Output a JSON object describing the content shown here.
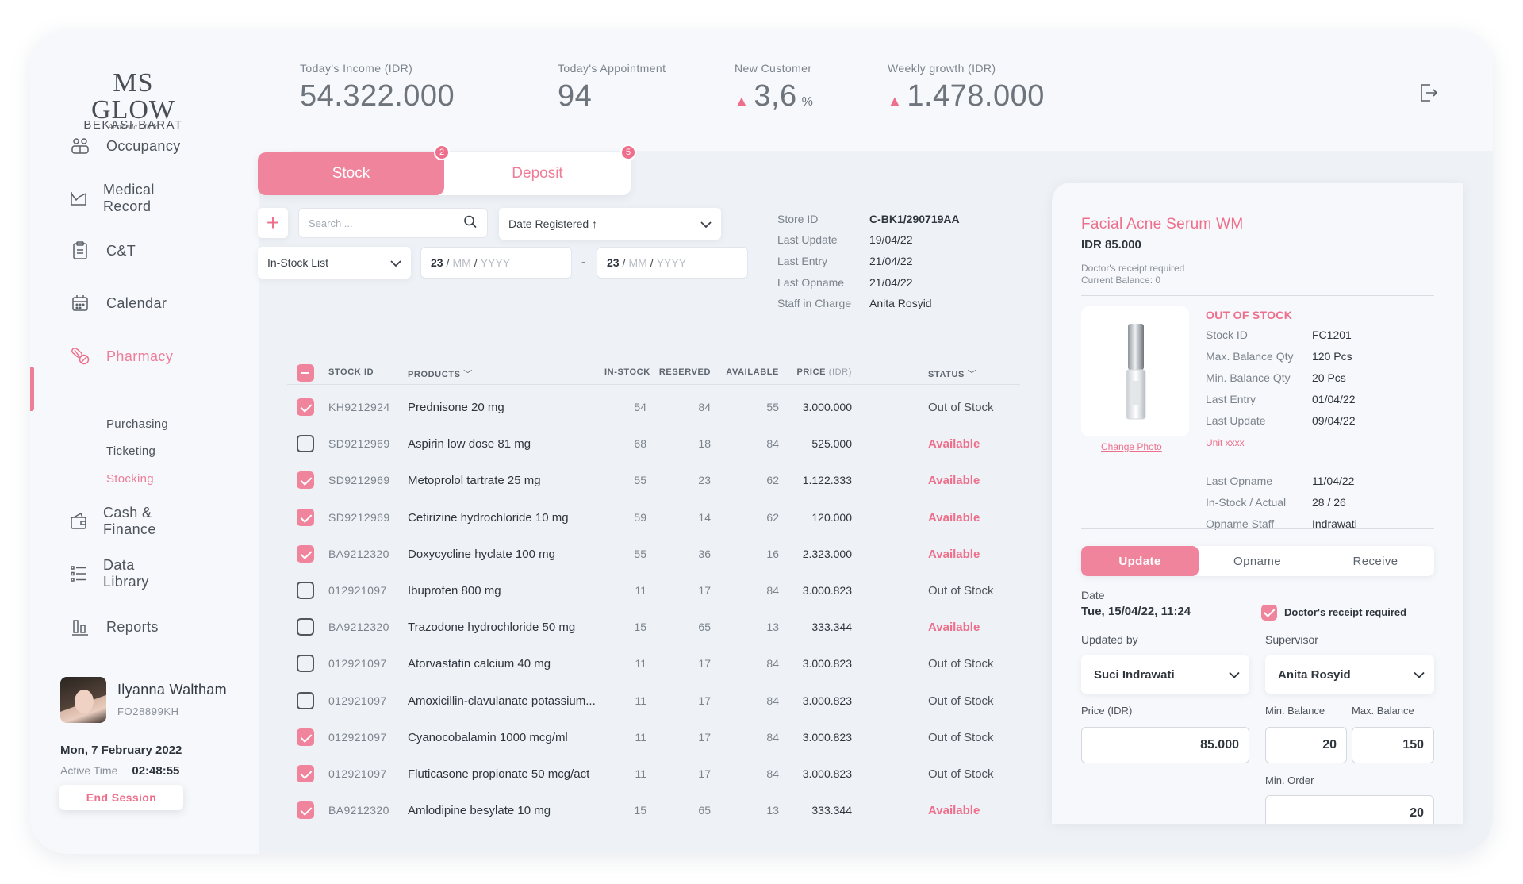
{
  "brand": {
    "name": "MS GLOW",
    "tagline": "Aesthetic Clinic",
    "branch": "BEKASI BARAT"
  },
  "stats": [
    {
      "label": "Today's Income (IDR)",
      "value": "54.322.000",
      "trend": "",
      "unit": ""
    },
    {
      "label": "Today's Appointment",
      "value": "94",
      "trend": "",
      "unit": ""
    },
    {
      "label": "New Customer",
      "value": "3,6",
      "trend": "▲",
      "unit": "%"
    },
    {
      "label": "Weekly growth (IDR)",
      "value": "1.478.000",
      "trend": "▲",
      "unit": ""
    }
  ],
  "sidebar": {
    "items": [
      {
        "label": "Occupancy",
        "icon": "occupancy-icon"
      },
      {
        "label": "Medical Record",
        "icon": "medical-record-icon"
      },
      {
        "label": "C&T",
        "icon": "clipboard-icon"
      },
      {
        "label": "Calendar",
        "icon": "calendar-icon"
      },
      {
        "label": "Pharmacy",
        "icon": "pills-icon"
      },
      {
        "label": "Cash & Finance",
        "icon": "wallet-icon"
      },
      {
        "label": "Data Library",
        "icon": "list-icon"
      },
      {
        "label": "Reports",
        "icon": "bar-chart-icon"
      }
    ],
    "pharmacy_sub": [
      "Purchasing",
      "Ticketing",
      "Stocking"
    ]
  },
  "user": {
    "name": "Ilyanna Waltham",
    "id": "FO28899KH",
    "date": "Mon, 7 February 2022",
    "active_label": "Active Time",
    "active_time": "02:48:55",
    "end_session": "End Session"
  },
  "tabs": {
    "stock": "Stock",
    "stock_badge": "2",
    "deposit": "Deposit",
    "deposit_badge": "5"
  },
  "filters": {
    "search_placeholder": "Search ...",
    "sort": "Date Registered ↑",
    "list_type": "In-Stock List",
    "date_from": {
      "dd": "23",
      "mm": "MM",
      "yyyy": "YYYY"
    },
    "date_to": {
      "dd": "23",
      "mm": "MM",
      "yyyy": "YYYY"
    }
  },
  "store_info": [
    {
      "k": "Store ID",
      "v": "C-BK1/290719AA"
    },
    {
      "k": "Last Update",
      "v": "19/04/22"
    },
    {
      "k": "Last Entry",
      "v": "21/04/22"
    },
    {
      "k": "Last Opname",
      "v": "21/04/22"
    },
    {
      "k": "Staff in Charge",
      "v": "Anita Rosyid"
    }
  ],
  "table": {
    "headers": {
      "stock_id": "STOCK ID",
      "products": "PRODUCTS",
      "in_stock": "IN-STOCK",
      "reserved": "RESERVED",
      "available": "AVAILABLE",
      "price": "PRICE",
      "price_unit": "(IDR)",
      "status": "STATUS"
    },
    "rows": [
      {
        "checked": true,
        "id": "KH9212924",
        "product": "Prednisone 20 mg",
        "in": "54",
        "res": "84",
        "av": "55",
        "price": "3.000.000",
        "status": "Out of Stock"
      },
      {
        "checked": false,
        "id": "SD9212969",
        "product": "Aspirin low dose 81 mg",
        "in": "68",
        "res": "18",
        "av": "84",
        "price": "525.000",
        "status": "Available"
      },
      {
        "checked": true,
        "id": "SD9212969",
        "product": "Metoprolol tartrate 25 mg",
        "in": "55",
        "res": "23",
        "av": "62",
        "price": "1.122.333",
        "status": "Available"
      },
      {
        "checked": true,
        "id": "SD9212969",
        "product": "Cetirizine hydrochloride 10 mg",
        "in": "59",
        "res": "14",
        "av": "62",
        "price": "120.000",
        "status": "Available"
      },
      {
        "checked": true,
        "id": "BA9212320",
        "product": "Doxycycline hyclate 100 mg",
        "in": "55",
        "res": "36",
        "av": "16",
        "price": "2.323.000",
        "status": "Available"
      },
      {
        "checked": false,
        "id": "012921097",
        "product": "Ibuprofen 800 mg",
        "in": "11",
        "res": "17",
        "av": "84",
        "price": "3.000.823",
        "status": "Out of Stock"
      },
      {
        "checked": false,
        "id": "BA9212320",
        "product": "Trazodone hydrochloride 50 mg",
        "in": "15",
        "res": "65",
        "av": "13",
        "price": "333.344",
        "status": "Available"
      },
      {
        "checked": false,
        "id": "012921097",
        "product": "Atorvastatin calcium 40 mg",
        "in": "11",
        "res": "17",
        "av": "84",
        "price": "3.000.823",
        "status": "Out of Stock"
      },
      {
        "checked": false,
        "id": "012921097",
        "product": "Amoxicillin-clavulanate potassium...",
        "in": "11",
        "res": "17",
        "av": "84",
        "price": "3.000.823",
        "status": "Out of Stock"
      },
      {
        "checked": true,
        "id": "012921097",
        "product": "Cyanocobalamin 1000 mcg/ml",
        "in": "11",
        "res": "17",
        "av": "84",
        "price": "3.000.823",
        "status": "Out of Stock"
      },
      {
        "checked": true,
        "id": "012921097",
        "product": "Fluticasone propionate 50 mcg/act",
        "in": "11",
        "res": "17",
        "av": "84",
        "price": "3.000.823",
        "status": "Out of Stock"
      },
      {
        "checked": true,
        "id": "BA9212320",
        "product": "Amlodipine besylate 10 mg",
        "in": "15",
        "res": "65",
        "av": "13",
        "price": "333.344",
        "status": "Available"
      }
    ]
  },
  "detail": {
    "name": "Facial Acne Serum WM",
    "price": "IDR 85.000",
    "note1": "Doctor's receipt required",
    "note2": "Current Balance: 0",
    "status": "OUT OF STOCK",
    "change_photo": "Change Photo",
    "unit": "Unit xxxx",
    "rows1": [
      {
        "k": "Stock ID",
        "v": "FC1201"
      },
      {
        "k": "Max. Balance Qty",
        "v": "120 Pcs"
      },
      {
        "k": "Min. Balance Qty",
        "v": "20 Pcs"
      },
      {
        "k": "Last Entry",
        "v": "01/04/22"
      },
      {
        "k": "Last Update",
        "v": "09/04/22"
      }
    ],
    "rows2": [
      {
        "k": "Last Opname",
        "v": "11/04/22"
      },
      {
        "k": "In-Stock / Actual",
        "v": "28 / 26"
      },
      {
        "k": "Opname Staff",
        "v": "Indrawati"
      }
    ],
    "segments": [
      "Update",
      "Opname",
      "Receive"
    ],
    "form": {
      "date_label": "Date",
      "date_value": "Tue, 15/04/22, 11:24",
      "receipt_label": "Doctor's receipt required",
      "updated_by_label": "Updated by",
      "updated_by": "Suci Indrawati",
      "supervisor_label": "Supervisor",
      "supervisor": "Anita Rosyid",
      "price_label": "Price (IDR)",
      "price": "85.000",
      "min_label": "Min. Balance",
      "min": "20",
      "max_label": "Max. Balance",
      "max": "150",
      "min_order_label": "Min. Order",
      "min_order": "20"
    }
  },
  "colors": {
    "accent": "#f0849d",
    "accent_text": "#ee6f8c"
  }
}
